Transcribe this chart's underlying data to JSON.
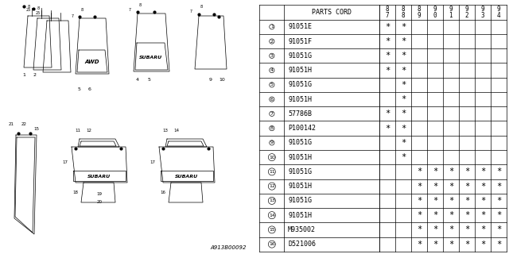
{
  "diagram_ref": "A913B00092",
  "rows": [
    {
      "num": 1,
      "part": "91051E",
      "cols": [
        1,
        1,
        0,
        0,
        0,
        0,
        0,
        0
      ]
    },
    {
      "num": 2,
      "part": "91051F",
      "cols": [
        1,
        1,
        0,
        0,
        0,
        0,
        0,
        0
      ]
    },
    {
      "num": 3,
      "part": "91051G",
      "cols": [
        1,
        1,
        0,
        0,
        0,
        0,
        0,
        0
      ]
    },
    {
      "num": 4,
      "part": "91051H",
      "cols": [
        1,
        1,
        0,
        0,
        0,
        0,
        0,
        0
      ]
    },
    {
      "num": 5,
      "part": "91051G",
      "cols": [
        0,
        1,
        0,
        0,
        0,
        0,
        0,
        0
      ]
    },
    {
      "num": 6,
      "part": "91051H",
      "cols": [
        0,
        1,
        0,
        0,
        0,
        0,
        0,
        0
      ]
    },
    {
      "num": 7,
      "part": "57786B",
      "cols": [
        1,
        1,
        0,
        0,
        0,
        0,
        0,
        0
      ]
    },
    {
      "num": 8,
      "part": "P100142",
      "cols": [
        1,
        1,
        0,
        0,
        0,
        0,
        0,
        0
      ]
    },
    {
      "num": 9,
      "part": "91051G",
      "cols": [
        0,
        1,
        0,
        0,
        0,
        0,
        0,
        0
      ]
    },
    {
      "num": 10,
      "part": "91051H",
      "cols": [
        0,
        1,
        0,
        0,
        0,
        0,
        0,
        0
      ]
    },
    {
      "num": 11,
      "part": "91051G",
      "cols": [
        0,
        0,
        1,
        1,
        1,
        1,
        1,
        1
      ]
    },
    {
      "num": 12,
      "part": "91051H",
      "cols": [
        0,
        0,
        1,
        1,
        1,
        1,
        1,
        1
      ]
    },
    {
      "num": 13,
      "part": "91051G",
      "cols": [
        0,
        0,
        1,
        1,
        1,
        1,
        1,
        1
      ]
    },
    {
      "num": 14,
      "part": "91051H",
      "cols": [
        0,
        0,
        1,
        1,
        1,
        1,
        1,
        1
      ]
    },
    {
      "num": 15,
      "part": "M935002",
      "cols": [
        0,
        0,
        1,
        1,
        1,
        1,
        1,
        1
      ]
    },
    {
      "num": 16,
      "part": "D521006",
      "cols": [
        0,
        0,
        1,
        1,
        1,
        1,
        1,
        1
      ]
    }
  ],
  "col_years": [
    "8\n7",
    "8\n8",
    "8\n9",
    "9\n0",
    "9\n1",
    "9\n2",
    "9\n3",
    "9\n4"
  ],
  "bg_color": "#ffffff",
  "line_color": "#000000"
}
